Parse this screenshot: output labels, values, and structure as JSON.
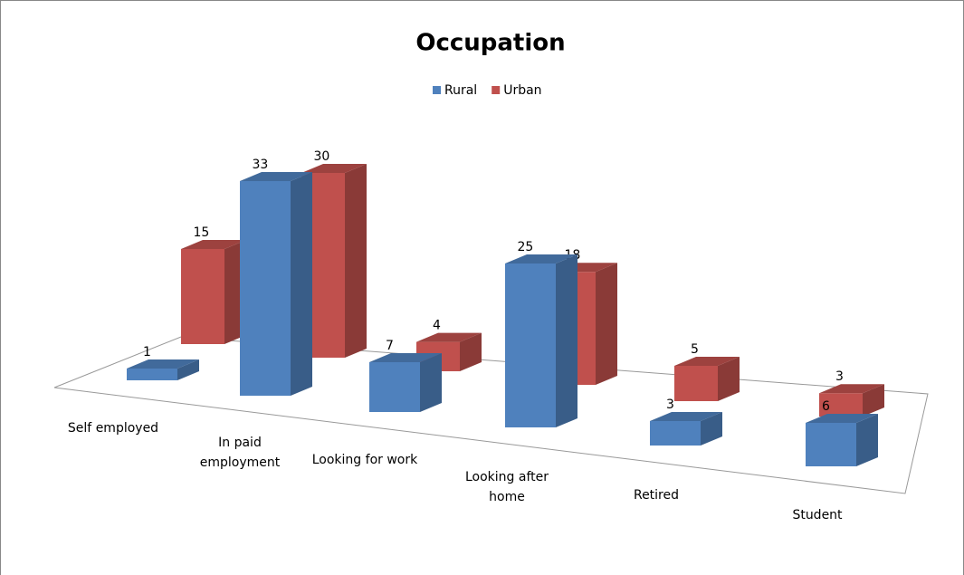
{
  "chart_data": {
    "type": "bar3d",
    "title": "Occupation",
    "categories": [
      "Self employed",
      "In paid employment",
      "Looking for work",
      "Looking after home",
      "Retired",
      "Student"
    ],
    "series": [
      {
        "name": "Rural",
        "color": "#4f81bd",
        "values": [
          1,
          33,
          7,
          25,
          3,
          6
        ]
      },
      {
        "name": "Urban",
        "color": "#c0504d",
        "values": [
          15,
          30,
          4,
          18,
          5,
          3
        ]
      }
    ],
    "legend": "top"
  }
}
